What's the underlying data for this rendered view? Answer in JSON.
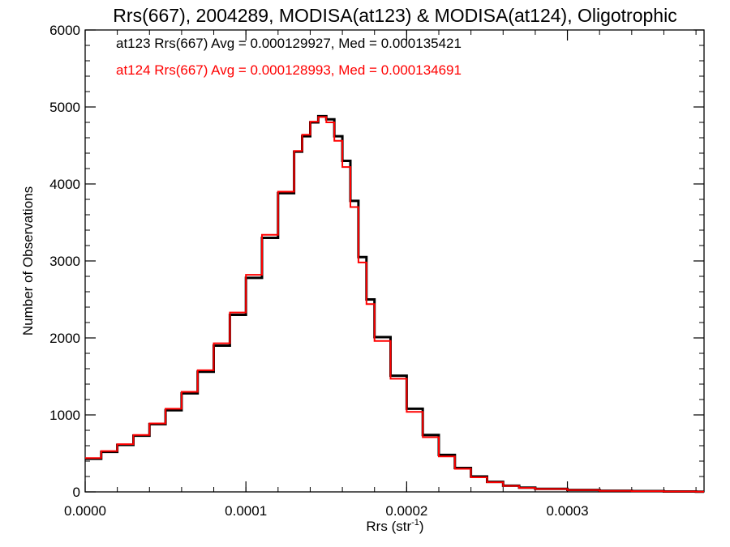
{
  "chart_data": {
    "type": "line",
    "title": "Rrs(667), 2004289, MODISA(at123) & MODISA(at124), Oligotrophic",
    "xlabel": "Rrs (str",
    "xlabel_sup": "-1",
    "xlabel_close": ")",
    "ylabel": "Number of Observations",
    "xlim": [
      0.0,
      0.000385
    ],
    "ylim": [
      0,
      6000
    ],
    "x_ticks": [
      {
        "value": 0.0,
        "label": "0.0000"
      },
      {
        "value": 0.0001,
        "label": "0.0001"
      },
      {
        "value": 0.0002,
        "label": "0.0002"
      },
      {
        "value": 0.0003,
        "label": "0.0003"
      }
    ],
    "y_ticks": [
      {
        "value": 0,
        "label": "0"
      },
      {
        "value": 1000,
        "label": "1000"
      },
      {
        "value": 2000,
        "label": "2000"
      },
      {
        "value": 3000,
        "label": "3000"
      },
      {
        "value": 4000,
        "label": "4000"
      },
      {
        "value": 5000,
        "label": "5000"
      },
      {
        "value": 6000,
        "label": "6000"
      }
    ],
    "x_minor_step": 2e-05,
    "y_minor_step": 200,
    "grid": false,
    "legend_position": "top-left",
    "annotations": [
      {
        "text": "at123 Rrs(667) Avg = 0.000129927, Med = 0.000135421",
        "color": "#000000"
      },
      {
        "text": "at124 Rrs(667) Avg = 0.000128993, Med = 0.000134691",
        "color": "#ff0000"
      }
    ],
    "series": [
      {
        "color": "#000000",
        "step": "histogram",
        "x": [
          0.0,
          1e-05,
          2e-05,
          3e-05,
          4e-05,
          5e-05,
          6e-05,
          7e-05,
          8e-05,
          9e-05,
          0.0001,
          0.00011,
          0.00012,
          0.00013,
          0.000135,
          0.00014,
          0.000145,
          0.00015,
          0.000155,
          0.00016,
          0.000165,
          0.00017,
          0.000175,
          0.00018,
          0.00019,
          0.0002,
          0.00021,
          0.00022,
          0.00023,
          0.00024,
          0.00025,
          0.00026,
          0.00027,
          0.00028,
          0.0003,
          0.00032,
          0.00034,
          0.00036,
          0.00038
        ],
        "values": [
          430,
          520,
          610,
          730,
          880,
          1060,
          1280,
          1560,
          1900,
          2300,
          2780,
          3300,
          3880,
          4420,
          4620,
          4800,
          4880,
          4840,
          4620,
          4300,
          3780,
          3050,
          2500,
          2010,
          1510,
          1080,
          740,
          480,
          310,
          200,
          130,
          80,
          55,
          40,
          25,
          15,
          10,
          5,
          3
        ]
      },
      {
        "color": "#ff0000",
        "step": "histogram",
        "x": [
          0.0,
          1e-05,
          2e-05,
          3e-05,
          4e-05,
          5e-05,
          6e-05,
          7e-05,
          8e-05,
          9e-05,
          0.0001,
          0.00011,
          0.00012,
          0.00013,
          0.000135,
          0.00014,
          0.000145,
          0.00015,
          0.000155,
          0.00016,
          0.000165,
          0.00017,
          0.000175,
          0.00018,
          0.00019,
          0.0002,
          0.00021,
          0.00022,
          0.00023,
          0.00024,
          0.00025,
          0.00026,
          0.00027,
          0.00028,
          0.0003,
          0.00032,
          0.00034,
          0.00036,
          0.00038
        ],
        "values": [
          440,
          530,
          620,
          740,
          890,
          1080,
          1300,
          1580,
          1930,
          2330,
          2820,
          3340,
          3900,
          4430,
          4640,
          4810,
          4870,
          4800,
          4560,
          4220,
          3700,
          2980,
          2440,
          1960,
          1470,
          1040,
          710,
          460,
          300,
          190,
          125,
          78,
          52,
          38,
          24,
          14,
          9,
          5,
          3
        ]
      }
    ]
  }
}
